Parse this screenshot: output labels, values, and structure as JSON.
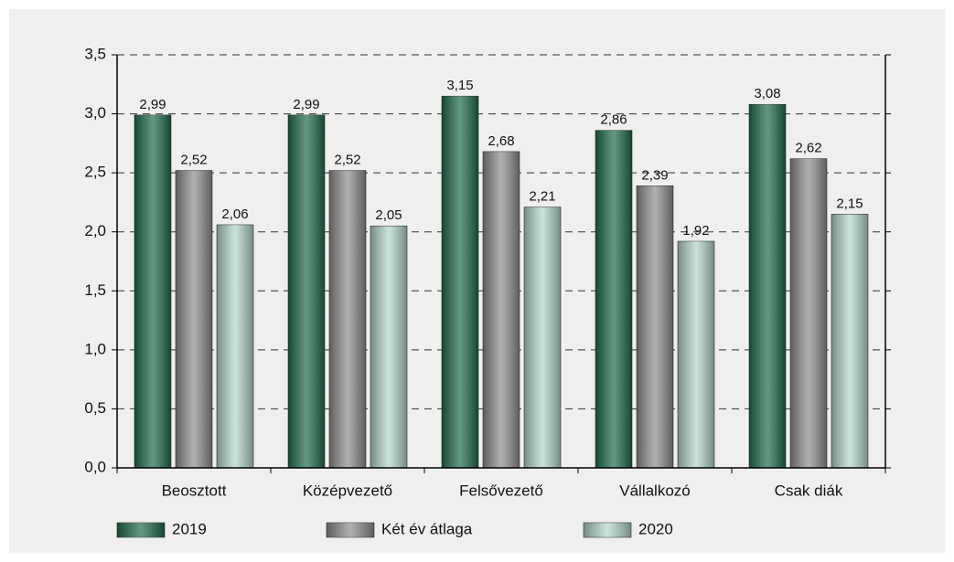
{
  "chart_data": {
    "type": "bar",
    "categories": [
      "Beosztott",
      "Középvezető",
      "Felsővezető",
      "Vállalkozó",
      "Csak diák"
    ],
    "series": [
      {
        "name": "2019",
        "color": "#1f6b4c",
        "values": [
          2.99,
          2.99,
          3.15,
          2.86,
          3.08
        ],
        "value_labels": [
          "2,99",
          "2,99",
          "3,15",
          "2,86",
          "3,08"
        ]
      },
      {
        "name": "Két év átlaga",
        "color": "#8e8e8e",
        "values": [
          2.52,
          2.52,
          2.68,
          2.39,
          2.62
        ],
        "value_labels": [
          "2,52",
          "2,52",
          "2,68",
          "2,39",
          "2,62"
        ]
      },
      {
        "name": "2020",
        "color": "#b4d6cb",
        "values": [
          2.06,
          2.05,
          2.21,
          1.92,
          2.15
        ],
        "value_labels": [
          "2,06",
          "2,05",
          "2,21",
          "1,92",
          "2,15"
        ]
      }
    ],
    "ylim": [
      0,
      3.5
    ],
    "yticks": [
      {
        "value": 0,
        "label": "0,0"
      },
      {
        "value": 0.5,
        "label": "0,5"
      },
      {
        "value": 1,
        "label": "1,0"
      },
      {
        "value": 1.5,
        "label": "1,5"
      },
      {
        "value": 2,
        "label": "2,0"
      },
      {
        "value": 2.5,
        "label": "2,5"
      },
      {
        "value": 3,
        "label": "3,0"
      },
      {
        "value": 3.5,
        "label": "3,5"
      }
    ],
    "grid": true,
    "legend": "bottom"
  }
}
